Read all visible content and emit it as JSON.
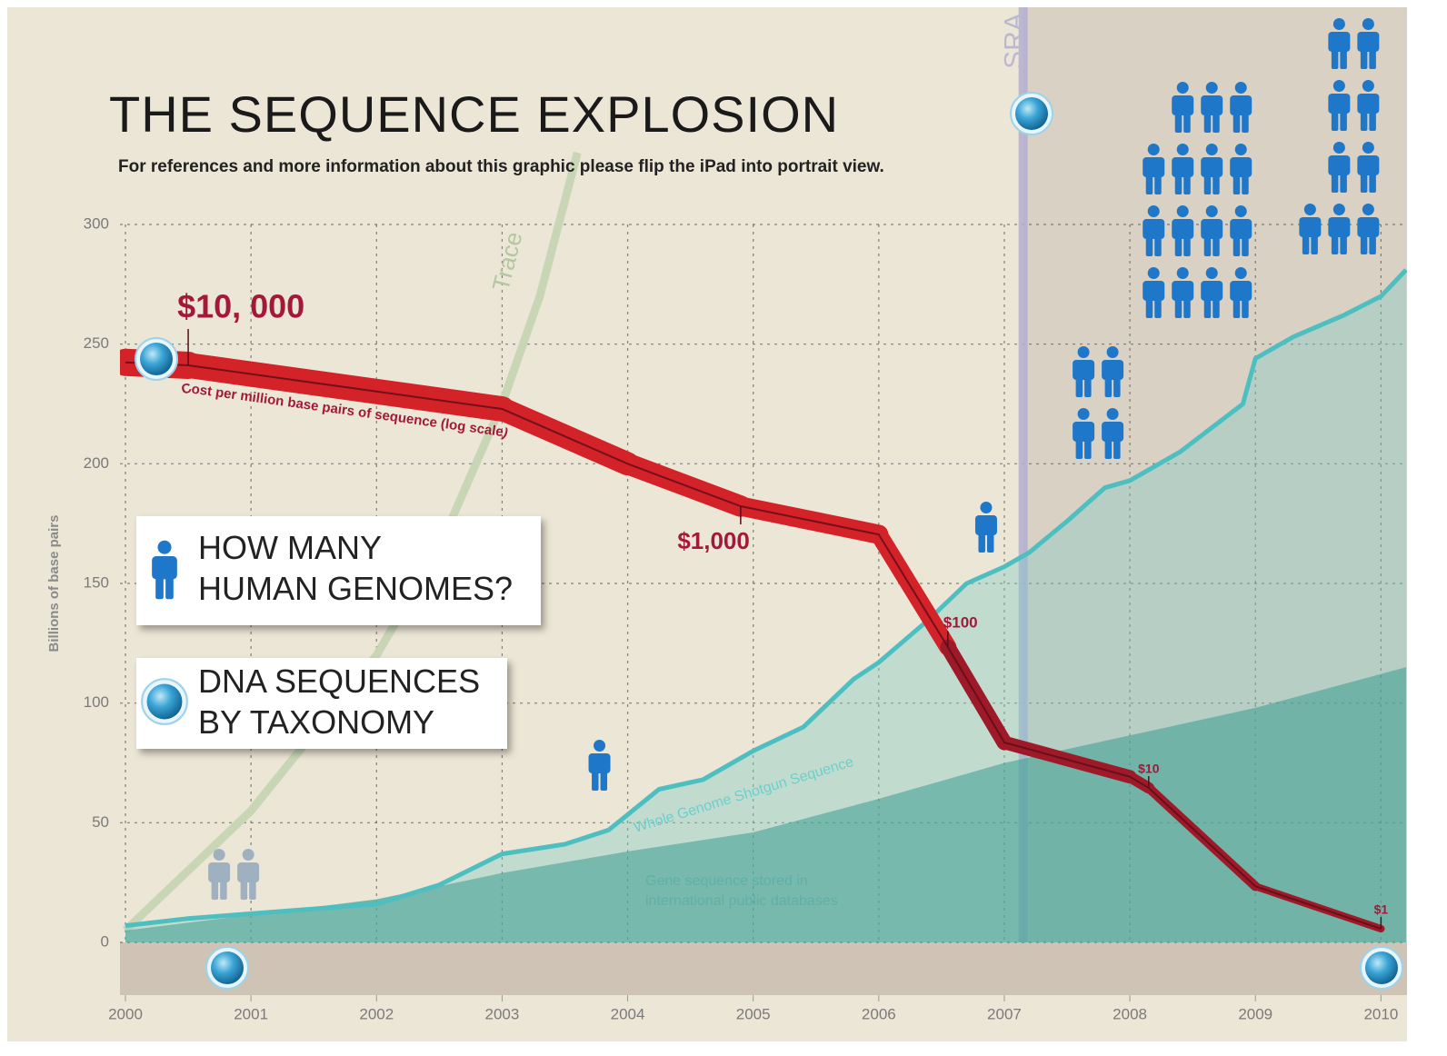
{
  "chart_data": {
    "type": "line",
    "title": "THE SEQUENCE EXPLOSION",
    "subtitle": "For references and more information about this graphic please flip the iPad into portrait view.",
    "ylabel": "Billions of base pairs",
    "xlim": [
      2000,
      2010.2
    ],
    "xticks": [
      2000,
      2001,
      2002,
      2003,
      2004,
      2005,
      2006,
      2007,
      2008,
      2009,
      2010
    ],
    "ylim": [
      0,
      300
    ],
    "yticks": [
      0,
      50,
      100,
      150,
      200,
      250,
      300
    ],
    "y2scale": "log",
    "y2lim": [
      0.8,
      100000
    ],
    "grid": true,
    "series": [
      {
        "name": "Whole Genome Shotgun Sequence",
        "color": "#4dbfc0",
        "x": [
          2000,
          2000.5,
          2001,
          2001.5,
          2002,
          2002.5,
          2003,
          2003.5,
          2003.85,
          2004.25,
          2004.6,
          2005,
          2005.4,
          2005.8,
          2006,
          2006.4,
          2006.7,
          2007,
          2007.2,
          2007.5,
          2007.8,
          2008,
          2008.4,
          2008.9,
          2009,
          2009.3,
          2009.7,
          2010,
          2010.2
        ],
        "values": [
          7,
          10,
          12,
          14,
          16,
          24,
          37,
          41,
          47,
          64,
          68,
          80,
          90,
          110,
          117,
          135,
          150,
          157,
          163,
          176,
          190,
          193,
          205,
          225,
          244,
          253,
          262,
          270,
          281
        ]
      },
      {
        "name": "Gene sequence stored in international public databases",
        "color": "#5aafa3",
        "x": [
          2000,
          2002,
          2003,
          2004,
          2005,
          2006,
          2007,
          2009,
          2010.2
        ],
        "values": [
          5,
          18,
          29,
          38,
          46,
          60,
          75,
          98,
          115
        ]
      },
      {
        "name": "Trace",
        "color": "#c9d6b6",
        "x": [
          2000,
          2001,
          2002,
          2002.5,
          2003,
          2003.3,
          2003.6
        ],
        "values": [
          5,
          55,
          120,
          165,
          225,
          270,
          330
        ]
      },
      {
        "name": "Cost per million base pairs of sequence (log scale)",
        "color": "#d42229",
        "axis": "y2",
        "x": [
          2000,
          2000.5,
          2003,
          2004,
          2004.9,
          2006,
          2006.55,
          2007,
          2008,
          2008.15,
          2009,
          2010
        ],
        "values": [
          10500,
          10000,
          4900,
          2000,
          1000,
          630,
          100,
          21,
          12,
          10,
          2,
          1
        ],
        "value_labels": [
          null,
          "$10, 000",
          null,
          null,
          "$1,000",
          null,
          "$100",
          null,
          null,
          "$10",
          null,
          "$1"
        ]
      }
    ],
    "sra": {
      "label": "SRA",
      "x": 2007.15
    },
    "genomes": {
      "x": [
        2001,
        2004,
        2007,
        2008,
        2009,
        2010
      ],
      "values": [
        2,
        1,
        1,
        4,
        15,
        9
      ],
      "colors": [
        "#9fb1c1",
        "#1f77c9",
        "#1f77c9",
        "#1f77c9",
        "#1f77c9",
        "#1f77c9"
      ]
    },
    "legend": [
      [
        "HOW MANY",
        "HUMAN GENOMES?"
      ],
      [
        "DNA SEQUENCES",
        "BY TAXONOMY"
      ]
    ]
  }
}
